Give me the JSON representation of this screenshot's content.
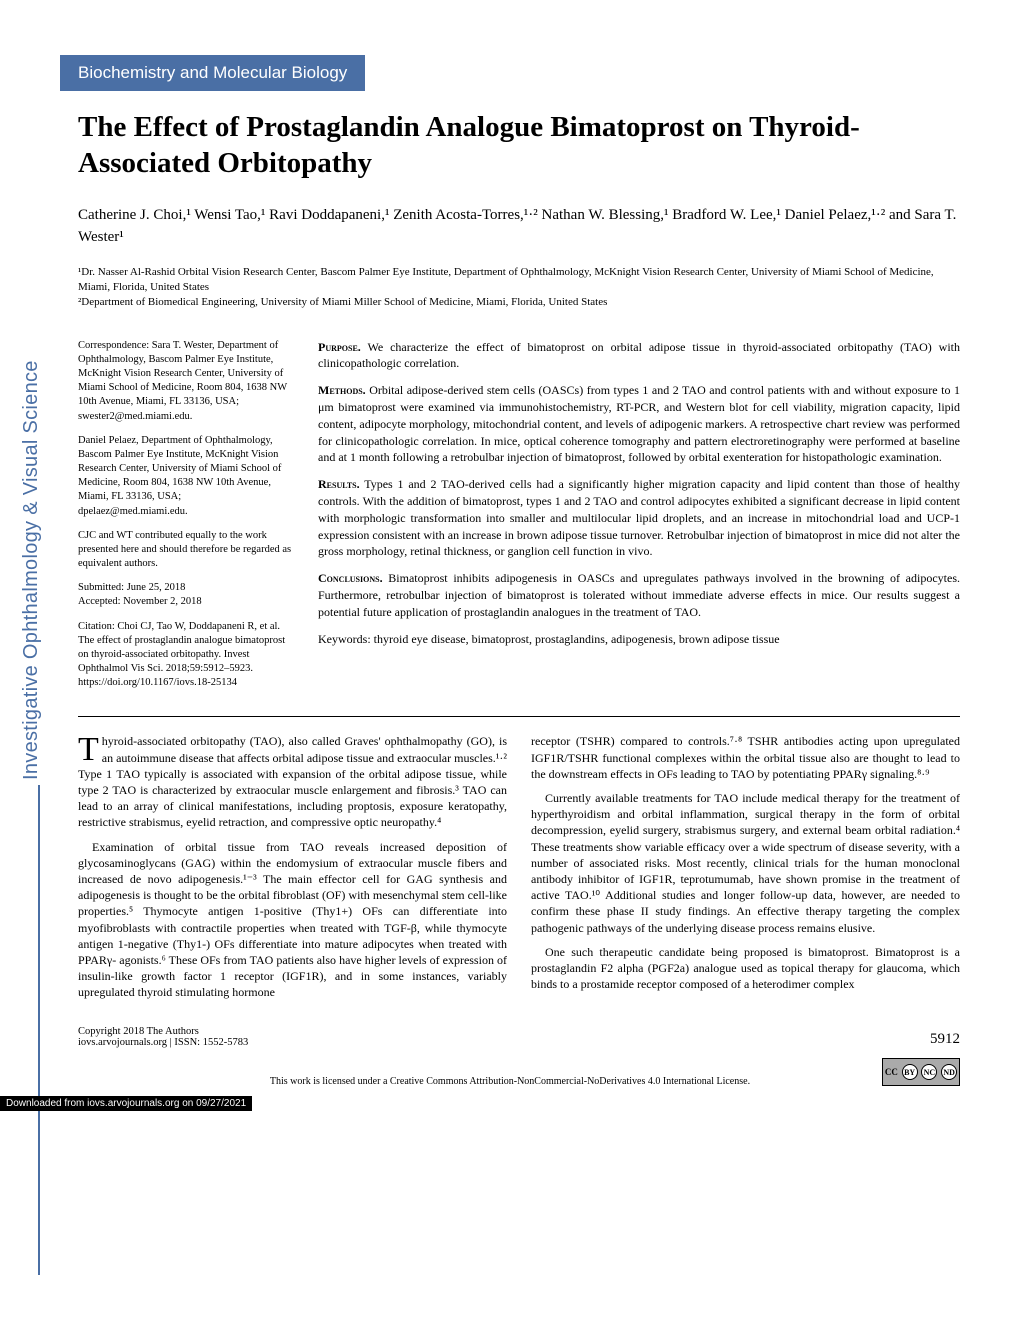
{
  "journal_label": "Investigative Ophthalmology & Visual Science",
  "category": "Biochemistry and Molecular Biology",
  "title": "The Effect of Prostaglandin Analogue Bimatoprost on Thyroid-Associated Orbitopathy",
  "authors_html": "Catherine J. Choi,¹ Wensi Tao,¹ Ravi Doddapaneni,¹ Zenith Acosta-Torres,¹·² Nathan W. Blessing,¹ Bradford W. Lee,¹ Daniel Pelaez,¹·² and Sara T. Wester¹",
  "affiliations": {
    "a1": "¹Dr. Nasser Al-Rashid Orbital Vision Research Center, Bascom Palmer Eye Institute, Department of Ophthalmology, McKnight Vision Research Center, University of Miami School of Medicine, Miami, Florida, United States",
    "a2": "²Department of Biomedical Engineering, University of Miami Miller School of Medicine, Miami, Florida, United States"
  },
  "sidebar": {
    "correspondence": "Correspondence: Sara T. Wester, Department of Ophthalmology, Bascom Palmer Eye Institute, McKnight Vision Research Center, University of Miami School of Medicine, Room 804, 1638 NW 10th Avenue, Miami, FL 33136, USA;",
    "email1": "swester2@med.miami.edu.",
    "corr2": "Daniel Pelaez, Department of Ophthalmology, Bascom Palmer Eye Institute, McKnight Vision Research Center, University of Miami School of Medicine, Room 804, 1638 NW 10th Avenue, Miami, FL 33136, USA;",
    "email2": "dpelaez@med.miami.edu.",
    "contrib": "CJC and WT contributed equally to the work presented here and should therefore be regarded as equivalent authors.",
    "submitted": "Submitted: June 25, 2018",
    "accepted": "Accepted: November 2, 2018",
    "citation": "Citation: Choi CJ, Tao W, Doddapaneni R, et al. The effect of prostaglandin analogue bimatoprost on thyroid-associated orbitopathy. Invest Ophthalmol Vis Sci. 2018;59:5912–5923. https://doi.org/10.1167/iovs.18-25134"
  },
  "abstract": {
    "purpose": "We characterize the effect of bimatoprost on orbital adipose tissue in thyroid-associated orbitopathy (TAO) with clinicopathologic correlation.",
    "methods": "Orbital adipose-derived stem cells (OASCs) from types 1 and 2 TAO and control patients with and without exposure to 1 μm bimatoprost were examined via immunohistochemistry, RT-PCR, and Western blot for cell viability, migration capacity, lipid content, adipocyte morphology, mitochondrial content, and levels of adipogenic markers. A retrospective chart review was performed for clinicopathologic correlation. In mice, optical coherence tomography and pattern electroretinography were performed at baseline and at 1 month following a retrobulbar injection of bimatoprost, followed by orbital exenteration for histopathologic examination.",
    "results": "Types 1 and 2 TAO-derived cells had a significantly higher migration capacity and lipid content than those of healthy controls. With the addition of bimatoprost, types 1 and 2 TAO and control adipocytes exhibited a significant decrease in lipid content with morphologic transformation into smaller and multilocular lipid droplets, and an increase in mitochondrial load and UCP-1 expression consistent with an increase in brown adipose tissue turnover. Retrobulbar injection of bimatoprost in mice did not alter the gross morphology, retinal thickness, or ganglion cell function in vivo.",
    "conclusions": "Bimatoprost inhibits adipogenesis in OASCs and upregulates pathways involved in the browning of adipocytes. Furthermore, retrobulbar injection of bimatoprost is tolerated without immediate adverse effects in mice. Our results suggest a potential future application of prostaglandin analogues in the treatment of TAO.",
    "keywords": "Keywords: thyroid eye disease, bimatoprost, prostaglandins, adipogenesis, brown adipose tissue"
  },
  "body": {
    "col1": {
      "p1_dropcap": "T",
      "p1": "hyroid-associated orbitopathy (TAO), also called Graves' ophthalmopathy (GO), is an autoimmune disease that affects orbital adipose tissue and extraocular muscles.¹·² Type 1 TAO typically is associated with expansion of the orbital adipose tissue, while type 2 TAO is characterized by extraocular muscle enlargement and fibrosis.³ TAO can lead to an array of clinical manifestations, including proptosis, exposure keratopathy, restrictive strabismus, eyelid retraction, and compressive optic neuropathy.⁴",
      "p2": "Examination of orbital tissue from TAO reveals increased deposition of glycosaminoglycans (GAG) within the endomysium of extraocular muscle fibers and increased de novo adipogenesis.¹⁻³ The main effector cell for GAG synthesis and adipogenesis is thought to be the orbital fibroblast (OF) with mesenchymal stem cell-like properties.⁵ Thymocyte antigen 1-positive (Thy1+) OFs can differentiate into myofibroblasts with contractile properties when treated with TGF-β, while thymocyte antigen 1-negative (Thy1-) OFs differentiate into mature adipocytes when treated with PPARγ- agonists.⁶ These OFs from TAO patients also have higher levels of expression of insulin-like growth factor 1 receptor (IGF1R), and in some instances, variably upregulated thyroid stimulating hormone"
    },
    "col2": {
      "p1": "receptor (TSHR) compared to controls.⁷·⁸ TSHR antibodies acting upon upregulated IGF1R/TSHR functional complexes within the orbital tissue also are thought to lead to the downstream effects in OFs leading to TAO by potentiating PPARγ signaling.⁸·⁹",
      "p2": "Currently available treatments for TAO include medical therapy for the treatment of hyperthyroidism and orbital inflammation, surgical therapy in the form of orbital decompression, eyelid surgery, strabismus surgery, and external beam orbital radiation.⁴ These treatments show variable efficacy over a wide spectrum of disease severity, with a number of associated risks. Most recently, clinical trials for the human monoclonal antibody inhibitor of IGF1R, teprotumumab, have shown promise in the treatment of active TAO.¹⁰ Additional studies and longer follow-up data, however, are needed to confirm these phase II study findings. An effective therapy targeting the complex pathogenic pathways of the underlying disease process remains elusive.",
      "p3": "One such therapeutic candidate being proposed is bimatoprost. Bimatoprost is a prostaglandin F2 alpha (PGF2a) analogue used as topical therapy for glaucoma, which binds to a prostamide receptor composed of a heterodimer complex"
    }
  },
  "footer": {
    "copyright": "Copyright 2018 The Authors",
    "journal_info": "iovs.arvojournals.org | ISSN: 1552-5783",
    "page_number": "5912",
    "license": "This work is licensed under a Creative Commons Attribution-NonCommercial-NoDerivatives 4.0 International License.",
    "download": "Downloaded from iovs.arvojournals.org on 09/27/2021"
  },
  "colors": {
    "accent": "#4a6fa5",
    "text": "#000000",
    "background": "#ffffff"
  },
  "typography": {
    "title_fontsize": 29,
    "body_fontsize": 12,
    "sidebar_fontsize": 10.5,
    "font_family_body": "Georgia, Times New Roman, serif",
    "font_family_ui": "Arial, Helvetica, sans-serif"
  }
}
